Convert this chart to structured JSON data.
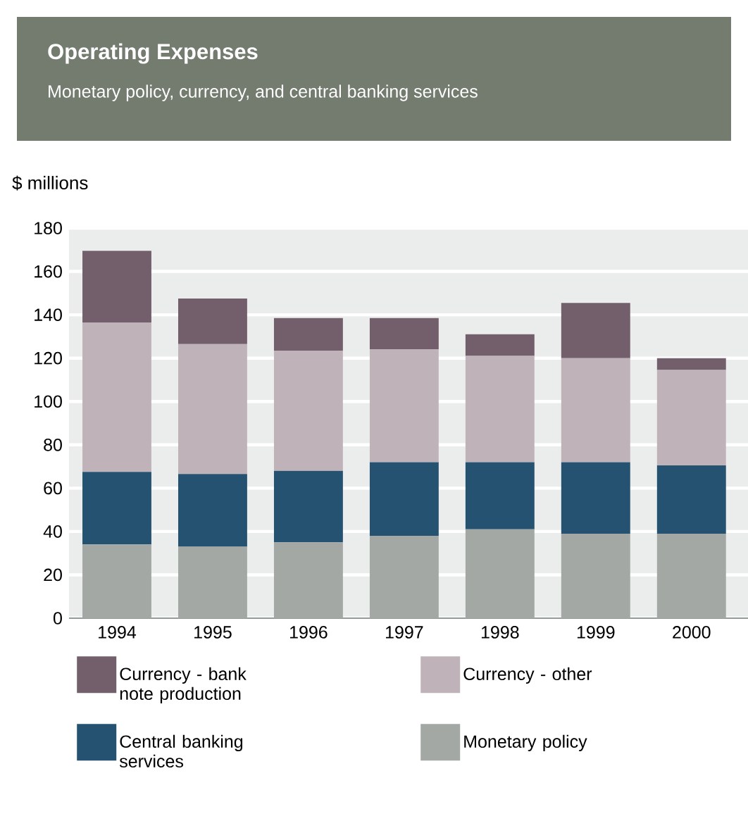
{
  "chart_data": {
    "type": "bar",
    "title": "Operating Expenses",
    "subtitle": "Monetary policy, currency, and central banking services",
    "ylabel": "$ millions",
    "categories": [
      "1994",
      "1995",
      "1996",
      "1997",
      "1998",
      "1999",
      "2000"
    ],
    "series": [
      {
        "name": "Monetary policy",
        "color": "#a3a8a4",
        "values": [
          34,
          33,
          35,
          38,
          41,
          39,
          39
        ]
      },
      {
        "name": "Central banking services",
        "color": "#255270",
        "values": [
          33.5,
          33.5,
          33,
          34,
          31,
          33,
          31.5
        ]
      },
      {
        "name": "Currency - other",
        "color": "#bfb3b9",
        "values": [
          69,
          60,
          55.5,
          52,
          49,
          48,
          44
        ]
      },
      {
        "name": "Currency - bank note production",
        "color": "#735f6b",
        "values": [
          33,
          21,
          15,
          14.5,
          10,
          25.5,
          5.5
        ]
      }
    ],
    "stacked": true,
    "ylim": [
      0,
      180
    ],
    "yticks": [
      0,
      20,
      40,
      60,
      80,
      100,
      120,
      140,
      160,
      180
    ],
    "grid": "y",
    "legend": "bottom"
  }
}
